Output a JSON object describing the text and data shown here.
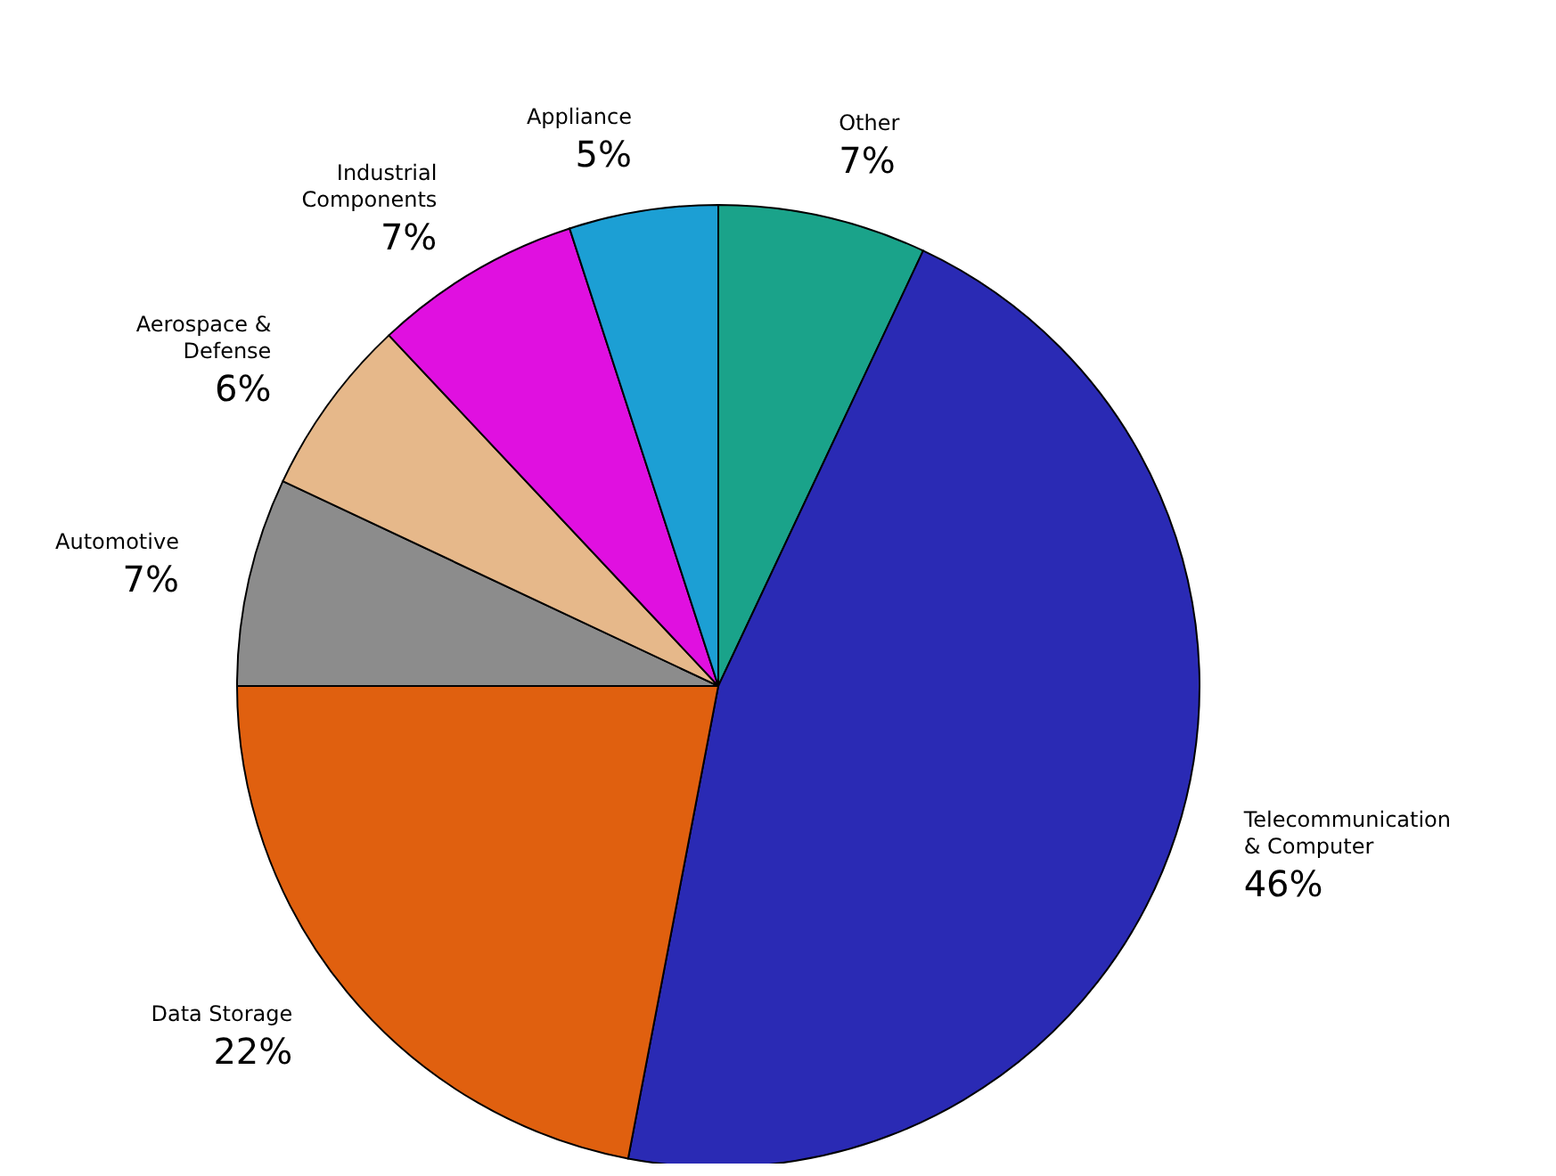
{
  "chart_data": {
    "type": "pie",
    "categories": [
      "Other",
      "Telecommunication\n& Computer",
      "Data Storage",
      "Automotive",
      "Aerospace &\nDefense",
      "Industrial\nComponents",
      "Appliance"
    ],
    "values": [
      7,
      46,
      22,
      7,
      6,
      7,
      5
    ],
    "value_labels": [
      "7%",
      "46%",
      "22%",
      "7%",
      "6%",
      "7%",
      "5%"
    ],
    "colors": [
      "#1aa38a",
      "#2a2ab4",
      "#e0600f",
      "#8c8c8c",
      "#e6b88a",
      "#e010e0",
      "#1c9fd4"
    ],
    "legend": false
  }
}
